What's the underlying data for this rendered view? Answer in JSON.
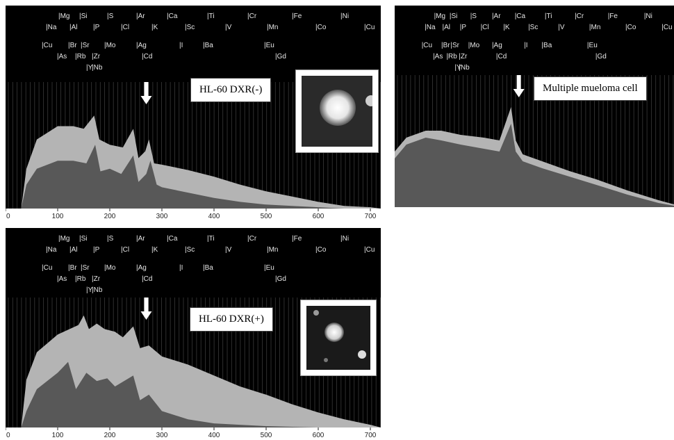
{
  "chart_data": [
    {
      "type": "area",
      "label": "HL-60 DXR(-)",
      "xlim": [
        0,
        720
      ],
      "xticks": [
        0,
        100,
        200,
        300,
        400,
        500,
        600,
        700
      ],
      "arrow_x": 270,
      "series": [
        {
          "values": [
            [
              30,
              0
            ],
            [
              40,
              30
            ],
            [
              60,
              52
            ],
            [
              100,
              62
            ],
            [
              130,
              62
            ],
            [
              150,
              60
            ],
            [
              170,
              70
            ],
            [
              180,
              52
            ],
            [
              200,
              48
            ],
            [
              225,
              46
            ],
            [
              245,
              60
            ],
            [
              255,
              38
            ],
            [
              268,
              43
            ],
            [
              275,
              52
            ],
            [
              285,
              34
            ],
            [
              300,
              33
            ],
            [
              350,
              29
            ],
            [
              400,
              24
            ],
            [
              450,
              18
            ],
            [
              500,
              13
            ],
            [
              550,
              9
            ],
            [
              600,
              5
            ],
            [
              650,
              2
            ],
            [
              700,
              1
            ],
            [
              720,
              0
            ]
          ]
        },
        {
          "values": [
            [
              30,
              0
            ],
            [
              40,
              18
            ],
            [
              60,
              30
            ],
            [
              100,
              36
            ],
            [
              130,
              36
            ],
            [
              155,
              34
            ],
            [
              172,
              48
            ],
            [
              182,
              28
            ],
            [
              200,
              30
            ],
            [
              222,
              26
            ],
            [
              245,
              40
            ],
            [
              255,
              20
            ],
            [
              270,
              26
            ],
            [
              278,
              36
            ],
            [
              290,
              18
            ],
            [
              300,
              16
            ],
            [
              350,
              12
            ],
            [
              400,
              8
            ],
            [
              450,
              5
            ],
            [
              500,
              3
            ],
            [
              550,
              2
            ],
            [
              600,
              1
            ],
            [
              650,
              0
            ],
            [
              720,
              0
            ]
          ]
        }
      ]
    },
    {
      "type": "area",
      "label": "Multiple mueloma cell",
      "xlim": [
        0,
        720
      ],
      "arrow_x": 320,
      "series": [
        {
          "values": [
            [
              0,
              40
            ],
            [
              30,
              50
            ],
            [
              80,
              55
            ],
            [
              120,
              55
            ],
            [
              170,
              52
            ],
            [
              230,
              50
            ],
            [
              270,
              48
            ],
            [
              300,
              72
            ],
            [
              312,
              48
            ],
            [
              330,
              38
            ],
            [
              380,
              33
            ],
            [
              450,
              26
            ],
            [
              520,
              20
            ],
            [
              600,
              12
            ],
            [
              680,
              5
            ],
            [
              720,
              2
            ]
          ]
        },
        {
          "values": [
            [
              0,
              35
            ],
            [
              30,
              45
            ],
            [
              80,
              50
            ],
            [
              120,
              48
            ],
            [
              170,
              45
            ],
            [
              230,
              42
            ],
            [
              270,
              40
            ],
            [
              300,
              60
            ],
            [
              312,
              40
            ],
            [
              330,
              33
            ],
            [
              380,
              28
            ],
            [
              450,
              22
            ],
            [
              520,
              16
            ],
            [
              600,
              9
            ],
            [
              680,
              3
            ],
            [
              720,
              1
            ]
          ]
        }
      ]
    },
    {
      "type": "area",
      "label": "HL-60 DXR(+)",
      "xlim": [
        0,
        720
      ],
      "xticks": [
        0,
        100,
        200,
        300,
        400,
        500,
        600,
        700
      ],
      "arrow_x": 270,
      "series": [
        {
          "values": [
            [
              30,
              0
            ],
            [
              40,
              35
            ],
            [
              60,
              55
            ],
            [
              100,
              68
            ],
            [
              140,
              75
            ],
            [
              150,
              82
            ],
            [
              160,
              72
            ],
            [
              175,
              76
            ],
            [
              190,
              72
            ],
            [
              210,
              70
            ],
            [
              225,
              66
            ],
            [
              245,
              74
            ],
            [
              258,
              58
            ],
            [
              275,
              60
            ],
            [
              300,
              52
            ],
            [
              350,
              46
            ],
            [
              400,
              38
            ],
            [
              450,
              30
            ],
            [
              500,
              24
            ],
            [
              550,
              17
            ],
            [
              600,
              11
            ],
            [
              650,
              6
            ],
            [
              700,
              2
            ],
            [
              720,
              0
            ]
          ]
        },
        {
          "values": [
            [
              30,
              0
            ],
            [
              40,
              12
            ],
            [
              60,
              28
            ],
            [
              100,
              40
            ],
            [
              110,
              44
            ],
            [
              120,
              48
            ],
            [
              135,
              28
            ],
            [
              155,
              40
            ],
            [
              175,
              34
            ],
            [
              195,
              36
            ],
            [
              210,
              30
            ],
            [
              245,
              38
            ],
            [
              258,
              20
            ],
            [
              275,
              24
            ],
            [
              300,
              12
            ],
            [
              350,
              6
            ],
            [
              400,
              3
            ],
            [
              450,
              2
            ],
            [
              500,
              1
            ],
            [
              600,
              0
            ],
            [
              720,
              0
            ]
          ]
        }
      ]
    }
  ],
  "elements": {
    "row1": [
      "Mg",
      "Si",
      "S",
      "Ar",
      "Ca",
      "Ti",
      "Cr",
      "Fe",
      "Ni"
    ],
    "row2": [
      "Na",
      "Al",
      "P",
      "Cl",
      "K",
      "Sc",
      "V",
      "Mn",
      "Co",
      "Cu"
    ],
    "row3": [
      "Cu",
      "Br",
      "Sr",
      "Mo",
      "Ag",
      "I",
      "Ba",
      "Eu"
    ],
    "row4": [
      "As",
      "Rb",
      "Zr",
      "Cd",
      "Gd"
    ],
    "row5": [
      "Y",
      "Nb"
    ]
  },
  "colors": {
    "background": "#000000",
    "outer_series": "#b4b4b4",
    "inner_series": "#585858",
    "arrow": "#ffffff"
  }
}
